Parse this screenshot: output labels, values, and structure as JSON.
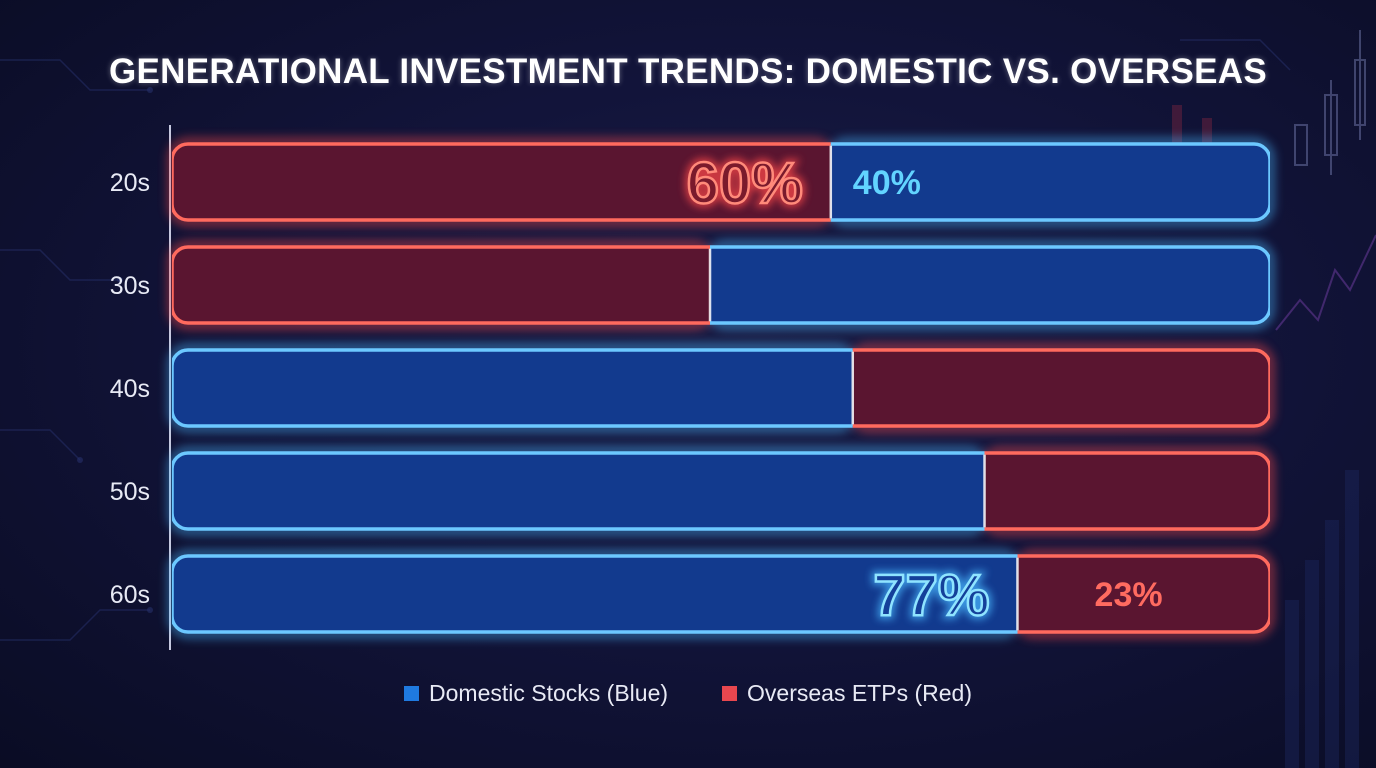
{
  "chart_data": {
    "type": "bar",
    "orientation": "horizontal",
    "stacked": true,
    "normalized": true,
    "title": "GENERATIONAL INVESTMENT TRENDS: DOMESTIC VS. OVERSEAS",
    "categories": [
      "20s",
      "30s",
      "40s",
      "50s",
      "60s"
    ],
    "series": [
      {
        "name": "Overseas ETPs (Red)",
        "key": "overseas",
        "color": "#e8474f",
        "values": [
          60,
          49,
          38,
          26,
          23
        ]
      },
      {
        "name": "Domestic Stocks (Blue)",
        "key": "domestic",
        "color": "#2e8ff0",
        "values": [
          40,
          51,
          62,
          74,
          77
        ]
      }
    ],
    "segment_order": [
      [
        "overseas",
        "domestic"
      ],
      [
        "overseas",
        "domestic"
      ],
      [
        "domestic",
        "overseas"
      ],
      [
        "domestic",
        "overseas"
      ],
      [
        "domestic",
        "overseas"
      ]
    ],
    "data_labels": [
      {
        "row": 0,
        "series": "overseas",
        "text": "60%",
        "style": "large"
      },
      {
        "row": 0,
        "series": "domestic",
        "text": "40%",
        "style": "small"
      },
      {
        "row": 4,
        "series": "domestic",
        "text": "77%",
        "style": "large"
      },
      {
        "row": 4,
        "series": "overseas",
        "text": "23%",
        "style": "small"
      }
    ],
    "legend": [
      {
        "label": "Domestic Stocks (Blue)",
        "color": "#1f7ae0"
      },
      {
        "label": "Overseas ETPs (Red)",
        "color": "#e8474f"
      }
    ],
    "xlim": [
      0,
      100
    ],
    "xlabel": "",
    "ylabel": ""
  },
  "colors": {
    "red_fill": "#5a1530",
    "red_glow": "#ff4a4a",
    "blue_fill": "#123a8e",
    "blue_glow": "#49b8ff",
    "label_blue": "#62d4ff",
    "label_red": "#ff6b60"
  }
}
